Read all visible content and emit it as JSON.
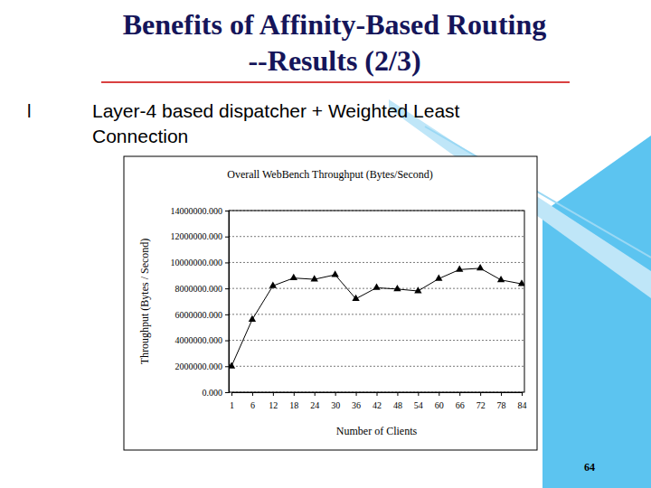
{
  "slide": {
    "title": [
      "Benefits of Affinity-Based Routing",
      "--Results (2/3)"
    ],
    "bullet_marker": "l",
    "bullet": "Layer-4 based dispatcher + Weighted Least Connection",
    "page_number": 64
  },
  "chart_data": {
    "type": "line",
    "title": "Overall WebBench Throughput (Bytes/Second)",
    "x_label": "Number of Clients",
    "y_label": "Throughput (Bytes / Second)",
    "categories": [
      "1",
      "6",
      "12",
      "18",
      "24",
      "30",
      "36",
      "42",
      "48",
      "54",
      "60",
      "66",
      "72",
      "78",
      "84"
    ],
    "values": [
      2000000,
      5600000,
      8200000,
      8800000,
      8700000,
      9050000,
      7200000,
      8050000,
      7950000,
      7800000,
      8750000,
      9450000,
      9550000,
      8650000,
      8350000
    ],
    "color": "#000000",
    "marker": "triangle",
    "ylim": [
      0,
      14000000
    ],
    "yticks": [
      {
        "value": 0,
        "label": "0.000"
      },
      {
        "value": 2000000,
        "label": "2000000.000"
      },
      {
        "value": 4000000,
        "label": "4000000.000"
      },
      {
        "value": 6000000,
        "label": "6000000.000"
      },
      {
        "value": 8000000,
        "label": "8000000.000"
      },
      {
        "value": 10000000,
        "label": "10000000.000"
      },
      {
        "value": 12000000,
        "label": "12000000.000"
      },
      {
        "value": 14000000,
        "label": "14000000.000"
      }
    ],
    "grid": true
  }
}
